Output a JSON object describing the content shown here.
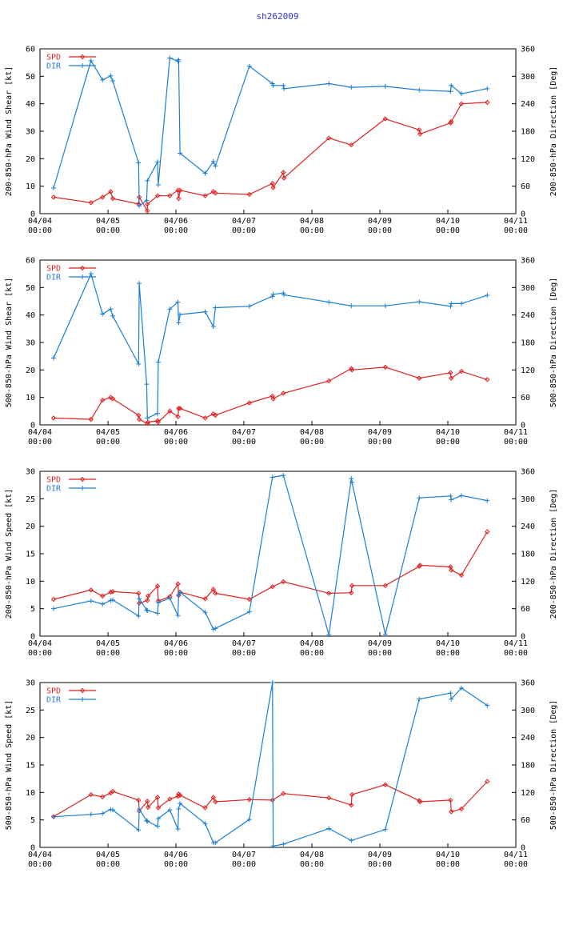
{
  "title": "sh262009",
  "colors": {
    "spd": "#dd2222",
    "dir": "#1a7fd4"
  },
  "legend": {
    "spd": "SPD",
    "dir": "DIR"
  },
  "x_ticks": [
    "04/04\n00:00",
    "04/05\n00:00",
    "04/06\n00:00",
    "04/07\n00:00",
    "04/08\n00:00",
    "04/09\n00:00",
    "04/10\n00:00",
    "04/11\n00:00"
  ],
  "chart_data": [
    {
      "type": "line",
      "ylabel_left": "200-850-hPa Wind Shear [kt]",
      "ylabel_right": "200-850-hPa Direction [Deg]",
      "ylim_left": [
        0,
        60
      ],
      "yticks_left": [
        0,
        10,
        20,
        30,
        40,
        50,
        60
      ],
      "ylim_right": [
        0,
        360
      ],
      "yticks_right": [
        0,
        60,
        120,
        180,
        240,
        300,
        360
      ],
      "xlim_days": [
        0,
        7
      ],
      "series": [
        {
          "name": "SPD",
          "x": [
            0.2,
            0.75,
            0.92,
            1.04,
            1.07,
            1.45,
            1.46,
            1.58,
            1.58,
            1.73,
            1.91,
            2.03,
            2.04,
            2.06,
            2.43,
            2.55,
            2.58,
            3.08,
            3.42,
            3.43,
            3.58,
            3.59,
            4.25,
            4.58,
            5.08,
            5.58,
            5.59,
            6.04,
            6.05,
            6.2,
            6.58
          ],
          "values": [
            6,
            4,
            6,
            8,
            5.5,
            3.5,
            6,
            1,
            3.5,
            6.5,
            6.5,
            8.5,
            5.5,
            8.5,
            6.5,
            8,
            7.5,
            7,
            11,
            9.5,
            15,
            13,
            27.5,
            25,
            34.5,
            30.5,
            29,
            33,
            33.5,
            40,
            40.5
          ]
        },
        {
          "name": "DIR",
          "x": [
            0.2,
            0.75,
            0.92,
            1.04,
            1.07,
            1.45,
            1.46,
            1.57,
            1.58,
            1.73,
            1.74,
            1.91,
            2.03,
            2.04,
            2.06,
            2.43,
            2.55,
            2.58,
            3.08,
            3.42,
            3.43,
            3.58,
            3.59,
            4.25,
            4.58,
            5.08,
            5.58,
            6.04,
            6.05,
            6.2,
            6.58
          ],
          "values": [
            56,
            334,
            292,
            301,
            290,
            111,
            17,
            29,
            72,
            113,
            63,
            340,
            333,
            336,
            132,
            88,
            114,
            104,
            322,
            284,
            280,
            280,
            273,
            284,
            276,
            278,
            270,
            267,
            280,
            262,
            273
          ]
        }
      ]
    },
    {
      "type": "line",
      "ylabel_left": "500-850-hPa Wind Shear [kt]",
      "ylabel_right": "500-850-hPa Direction [Deg]",
      "ylim_left": [
        0,
        60
      ],
      "yticks_left": [
        0,
        10,
        20,
        30,
        40,
        50,
        60
      ],
      "ylim_right": [
        0,
        360
      ],
      "yticks_right": [
        0,
        60,
        120,
        180,
        240,
        300,
        360
      ],
      "xlim_days": [
        0,
        7
      ],
      "series": [
        {
          "name": "SPD",
          "x": [
            0.2,
            0.75,
            0.92,
            1.04,
            1.07,
            1.45,
            1.46,
            1.58,
            1.59,
            1.73,
            1.74,
            1.91,
            2.03,
            2.04,
            2.06,
            2.43,
            2.55,
            2.58,
            3.08,
            3.42,
            3.43,
            3.58,
            4.25,
            4.58,
            4.59,
            5.08,
            5.58,
            6.04,
            6.05,
            6.2,
            6.58
          ],
          "values": [
            2.5,
            2,
            9,
            10,
            9.5,
            3.5,
            2,
            0.5,
            1,
            1.5,
            1,
            5,
            3,
            6,
            6,
            2.5,
            4,
            3.5,
            8,
            10.5,
            9.5,
            11.5,
            16,
            20.5,
            20,
            21,
            17,
            19,
            17,
            19.5,
            16.5
          ]
        },
        {
          "name": "DIR",
          "x": [
            0.2,
            0.75,
            0.92,
            1.04,
            1.07,
            1.45,
            1.46,
            1.57,
            1.58,
            1.73,
            1.74,
            1.91,
            2.03,
            2.04,
            2.06,
            2.43,
            2.55,
            2.58,
            3.08,
            3.42,
            3.43,
            3.58,
            3.59,
            4.25,
            4.58,
            5.08,
            5.58,
            6.04,
            6.05,
            6.2,
            6.58
          ],
          "values": [
            146,
            330,
            242,
            253,
            238,
            133,
            309,
            89,
            15,
            25,
            137,
            253,
            268,
            223,
            241,
            247,
            215,
            256,
            259,
            281,
            285,
            288,
            284,
            268,
            260,
            260,
            269,
            259,
            265,
            265,
            283
          ]
        }
      ]
    },
    {
      "type": "line",
      "ylabel_left": "200-850-hPa Wind Speed [kt]",
      "ylabel_right": "200-850-hPa Direction [Deg]",
      "ylim_left": [
        0,
        30
      ],
      "yticks_left": [
        0,
        5,
        10,
        15,
        20,
        25,
        30
      ],
      "ylim_right": [
        0,
        360
      ],
      "yticks_right": [
        0,
        60,
        120,
        180,
        240,
        300,
        360
      ],
      "xlim_days": [
        0,
        7
      ],
      "series": [
        {
          "name": "SPD",
          "x": [
            0.2,
            0.75,
            0.92,
            1.04,
            1.07,
            1.45,
            1.46,
            1.58,
            1.59,
            1.73,
            1.74,
            1.91,
            2.03,
            2.04,
            2.06,
            2.43,
            2.55,
            2.58,
            3.08,
            3.42,
            3.58,
            4.25,
            4.58,
            4.59,
            5.08,
            5.58,
            5.59,
            6.04,
            6.05,
            6.2,
            6.58
          ],
          "values": [
            6.7,
            8.4,
            7.3,
            8,
            8.1,
            7.8,
            6,
            6.5,
            7.3,
            9.1,
            6.4,
            7.2,
            9.5,
            7.4,
            8,
            6.8,
            8.5,
            7.8,
            6.7,
            9,
            9.9,
            7.8,
            7.9,
            9.2,
            9.2,
            12.7,
            12.9,
            12.6,
            12,
            11.1,
            19
          ]
        },
        {
          "name": "DIR",
          "x": [
            0.2,
            0.75,
            0.92,
            1.04,
            1.07,
            1.45,
            1.46,
            1.57,
            1.58,
            1.73,
            1.74,
            1.91,
            2.03,
            2.04,
            2.06,
            2.43,
            2.55,
            2.58,
            3.08,
            3.42,
            3.58,
            4.25,
            4.58,
            4.59,
            5.08,
            5.58,
            6.04,
            6.05,
            6.2,
            6.58
          ],
          "values": [
            60,
            77,
            70,
            78,
            79,
            44,
            82,
            57,
            56,
            50,
            73,
            83,
            45,
            89,
            96,
            52,
            15,
            17,
            53,
            347,
            351,
            3,
            344,
            336,
            4,
            302,
            306,
            298,
            307,
            296
          ]
        }
      ]
    },
    {
      "type": "line",
      "ylabel_left": "500-850-hPa Wind Speed [kt]",
      "ylabel_right": "500-850-hPa Direction [Deg]",
      "ylim_left": [
        0,
        30
      ],
      "yticks_left": [
        0,
        5,
        10,
        15,
        20,
        25,
        30
      ],
      "ylim_right": [
        0,
        360
      ],
      "yticks_right": [
        0,
        60,
        120,
        180,
        240,
        300,
        360
      ],
      "xlim_days": [
        0,
        7
      ],
      "series": [
        {
          "name": "SPD",
          "x": [
            0.2,
            0.75,
            0.92,
            1.04,
            1.07,
            1.45,
            1.46,
            1.58,
            1.59,
            1.73,
            1.74,
            1.91,
            2.03,
            2.04,
            2.06,
            2.43,
            2.55,
            2.58,
            3.08,
            3.42,
            3.58,
            4.25,
            4.58,
            4.59,
            5.08,
            5.58,
            5.59,
            6.04,
            6.05,
            6.2,
            6.58
          ],
          "values": [
            5.6,
            9.6,
            9.2,
            9.9,
            10.2,
            8.6,
            6.6,
            8.4,
            7.3,
            9.1,
            7.2,
            8.8,
            9.3,
            9.7,
            9.5,
            7.2,
            9.1,
            8.3,
            8.7,
            8.6,
            9.8,
            9,
            7.7,
            9.6,
            11.4,
            8.5,
            8.3,
            8.6,
            6.5,
            7,
            12
          ]
        },
        {
          "name": "DIR",
          "x": [
            0.2,
            0.75,
            0.92,
            1.04,
            1.07,
            1.45,
            1.46,
            1.57,
            1.58,
            1.73,
            1.74,
            1.91,
            2.03,
            2.04,
            2.06,
            2.43,
            2.55,
            2.58,
            3.08,
            3.42,
            3.43,
            3.58,
            4.25,
            4.58,
            5.08,
            5.58,
            6.04,
            6.05,
            6.2,
            6.58
          ],
          "values": [
            67,
            72,
            74,
            83,
            82,
            38,
            84,
            58,
            57,
            46,
            63,
            82,
            40,
            84,
            96,
            52,
            10,
            10,
            61,
            360,
            3,
            7,
            41,
            15,
            39,
            324,
            337,
            324,
            348,
            310
          ]
        }
      ]
    }
  ]
}
